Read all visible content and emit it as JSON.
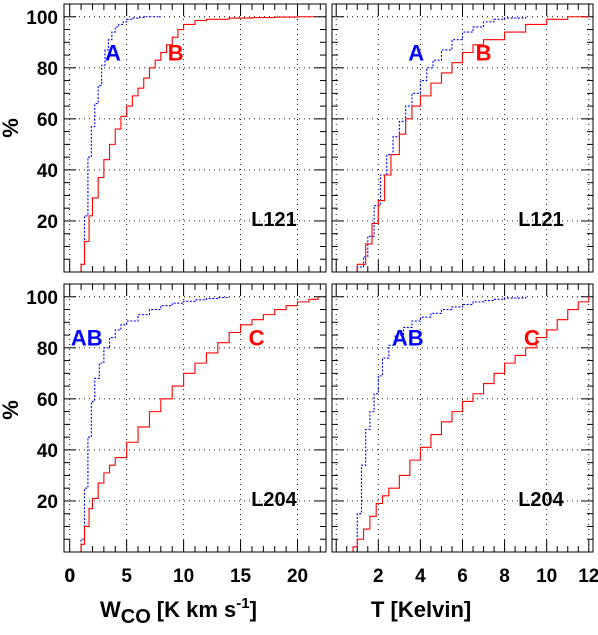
{
  "chart_data": [
    {
      "type": "line",
      "panel": "top-left",
      "xlim": [
        -0.5,
        22.5
      ],
      "ylim": [
        0,
        105
      ],
      "x_ticks": [],
      "y_ticks": [
        "20",
        "40",
        "60",
        "80",
        "100"
      ],
      "grid": true,
      "region_label": "L121",
      "series": [
        {
          "name": "A",
          "color": "#0000ff",
          "dash": "2 1.6",
          "x": [
            0.5,
            1.0,
            1.3,
            1.6,
            1.9,
            2.2,
            2.5,
            2.8,
            3.1,
            3.4,
            3.7,
            4.0,
            4.3,
            4.7,
            5.0,
            5.5,
            6.0,
            6.5,
            7.0,
            8.0
          ],
          "y": [
            0,
            3,
            22,
            45,
            57,
            66,
            73,
            81,
            87,
            91,
            94,
            96,
            97,
            98,
            99,
            99.5,
            99.8,
            100,
            100,
            100
          ]
        },
        {
          "name": "B",
          "color": "#ff0000",
          "dash": "",
          "x": [
            0.5,
            1.0,
            1.3,
            1.7,
            2.0,
            2.5,
            3.0,
            3.5,
            4.0,
            4.5,
            5.0,
            5.5,
            6.0,
            6.5,
            7.0,
            7.5,
            8.0,
            8.5,
            9.0,
            9.5,
            10.0,
            11.0,
            12.0,
            14.0,
            16.0,
            18.0,
            20.0,
            21.5
          ],
          "y": [
            0,
            3,
            12,
            22,
            29,
            37,
            44,
            50,
            56,
            61,
            65,
            69,
            72,
            76,
            80,
            83,
            86,
            89,
            92,
            95,
            97,
            98.5,
            99,
            99.5,
            99.7,
            99.9,
            100,
            100
          ]
        }
      ],
      "annotations": [
        {
          "text": "A",
          "x": 3.8,
          "y": 86,
          "color": "#0000ff"
        },
        {
          "text": "B",
          "x": 9.3,
          "y": 86,
          "color": "#ff0000"
        }
      ]
    },
    {
      "type": "line",
      "panel": "top-right",
      "xlim": [
        -0.2,
        12.2
      ],
      "ylim": [
        0,
        105
      ],
      "x_ticks": [],
      "y_ticks": [],
      "grid": true,
      "region_label": "L121",
      "series": [
        {
          "name": "A",
          "color": "#0000ff",
          "dash": "2 1.6",
          "x": [
            0.5,
            1.0,
            1.3,
            1.5,
            1.8,
            2.1,
            2.4,
            2.7,
            3.0,
            3.3,
            3.6,
            4.0,
            4.3,
            4.6,
            5.0,
            5.5,
            6.0,
            6.5,
            7.0,
            7.5,
            8.0,
            9.0
          ],
          "y": [
            0,
            2,
            6,
            14,
            26,
            38,
            46,
            53,
            59,
            65,
            70,
            75,
            80,
            83,
            87,
            91,
            94,
            96,
            98,
            99,
            99.5,
            100
          ]
        },
        {
          "name": "B",
          "color": "#ff0000",
          "dash": "",
          "x": [
            0.5,
            1.0,
            1.4,
            1.7,
            2.0,
            2.3,
            2.6,
            3.0,
            3.3,
            3.6,
            4.0,
            4.5,
            5.0,
            5.5,
            6.0,
            6.5,
            7.0,
            8.0,
            9.0,
            10.0,
            11.0,
            12.0
          ],
          "y": [
            0,
            3,
            11,
            19,
            28,
            38,
            46,
            54,
            60,
            65,
            69,
            74,
            78,
            82,
            86,
            89,
            91,
            94,
            97,
            99,
            100,
            100
          ]
        }
      ],
      "annotations": [
        {
          "text": "A",
          "x": 3.8,
          "y": 86,
          "color": "#0000ff"
        },
        {
          "text": "B",
          "x": 7.0,
          "y": 86,
          "color": "#ff0000"
        }
      ]
    },
    {
      "type": "line",
      "panel": "bottom-left",
      "xlim": [
        -0.5,
        22.5
      ],
      "ylim": [
        0,
        105
      ],
      "x_ticks": [
        "0",
        "5",
        "10",
        "15",
        "20"
      ],
      "y_ticks": [
        "20",
        "40",
        "60",
        "80",
        "100"
      ],
      "grid": true,
      "region_label": "L204",
      "series": [
        {
          "name": "AB",
          "color": "#0000ff",
          "dash": "2 1.6",
          "x": [
            0.5,
            1.0,
            1.3,
            1.6,
            1.9,
            2.2,
            2.6,
            3.0,
            3.5,
            4.0,
            4.5,
            5.0,
            6.0,
            7.0,
            8.0,
            9.0,
            10.0,
            11.0,
            12.0,
            13.0,
            14.0
          ],
          "y": [
            0,
            5,
            25,
            45,
            59,
            68,
            74,
            80,
            84,
            87,
            89,
            90.5,
            93,
            95,
            96.5,
            97.5,
            98.2,
            98.8,
            99.3,
            99.7,
            100
          ]
        },
        {
          "name": "C",
          "color": "#ff0000",
          "dash": "",
          "x": [
            0.5,
            1.0,
            1.3,
            1.7,
            2.0,
            2.5,
            3.0,
            3.5,
            4.0,
            5.0,
            6.0,
            7.0,
            8.0,
            9.0,
            10.0,
            11.0,
            12.0,
            13.0,
            14.0,
            15.0,
            16.0,
            17.0,
            18.0,
            19.0,
            20.0,
            21.0,
            21.8
          ],
          "y": [
            0,
            3,
            10,
            17,
            21,
            27,
            31,
            34,
            37,
            43,
            49,
            55,
            60,
            65,
            70,
            74,
            78,
            82,
            86,
            89,
            91,
            93,
            95,
            96.5,
            98,
            99,
            100
          ]
        }
      ],
      "annotations": [
        {
          "text": "AB",
          "x": 1.5,
          "y": 84,
          "color": "#0000ff"
        },
        {
          "text": "C",
          "x": 16.4,
          "y": 84,
          "color": "#ff0000"
        }
      ]
    },
    {
      "type": "line",
      "panel": "bottom-right",
      "xlim": [
        -0.2,
        12.2
      ],
      "ylim": [
        0,
        105
      ],
      "x_ticks": [
        "2",
        "4",
        "6",
        "8",
        "10",
        "12"
      ],
      "y_ticks": [],
      "grid": true,
      "region_label": "L204",
      "series": [
        {
          "name": "AB",
          "color": "#0000ff",
          "dash": "2 1.6",
          "x": [
            0.5,
            0.8,
            1.0,
            1.2,
            1.4,
            1.6,
            1.8,
            2.0,
            2.2,
            2.5,
            2.8,
            3.2,
            3.6,
            4.0,
            4.5,
            5.0,
            5.5,
            6.0,
            6.5,
            7.0,
            7.5,
            8.0,
            9.0
          ],
          "y": [
            0,
            2,
            15,
            34,
            48,
            55,
            62,
            69,
            76,
            81,
            85,
            88,
            90.5,
            92,
            93.5,
            95,
            96,
            97,
            98,
            98.5,
            99,
            99.5,
            100
          ]
        },
        {
          "name": "C",
          "color": "#ff0000",
          "dash": "",
          "x": [
            0.5,
            0.8,
            1.0,
            1.3,
            1.6,
            1.9,
            2.2,
            2.5,
            3.0,
            3.5,
            4.0,
            4.5,
            5.0,
            5.5,
            6.0,
            6.5,
            7.0,
            7.5,
            8.0,
            8.5,
            9.0,
            9.5,
            10.0,
            10.5,
            11.0,
            11.5,
            12.0
          ],
          "y": [
            0,
            2,
            5,
            9,
            14,
            19,
            22,
            25,
            30,
            36,
            41,
            46,
            51,
            55,
            59,
            62,
            66,
            70,
            74,
            77,
            80,
            84,
            87,
            91,
            95,
            98,
            100
          ]
        }
      ],
      "annotations": [
        {
          "text": "AB",
          "x": 3.4,
          "y": 84,
          "color": "#0000ff"
        },
        {
          "text": "C",
          "x": 9.3,
          "y": 84,
          "color": "#ff0000"
        }
      ]
    }
  ],
  "labels": {
    "y_axis_top": "%",
    "y_axis_bottom": "%",
    "x_axis_left_main": "W",
    "x_axis_left_sub": "CO",
    "x_axis_left_unit": "[K km s",
    "x_axis_left_sup": "-1",
    "x_axis_left_close": "]",
    "x_axis_right": "T [Kelvin]"
  }
}
